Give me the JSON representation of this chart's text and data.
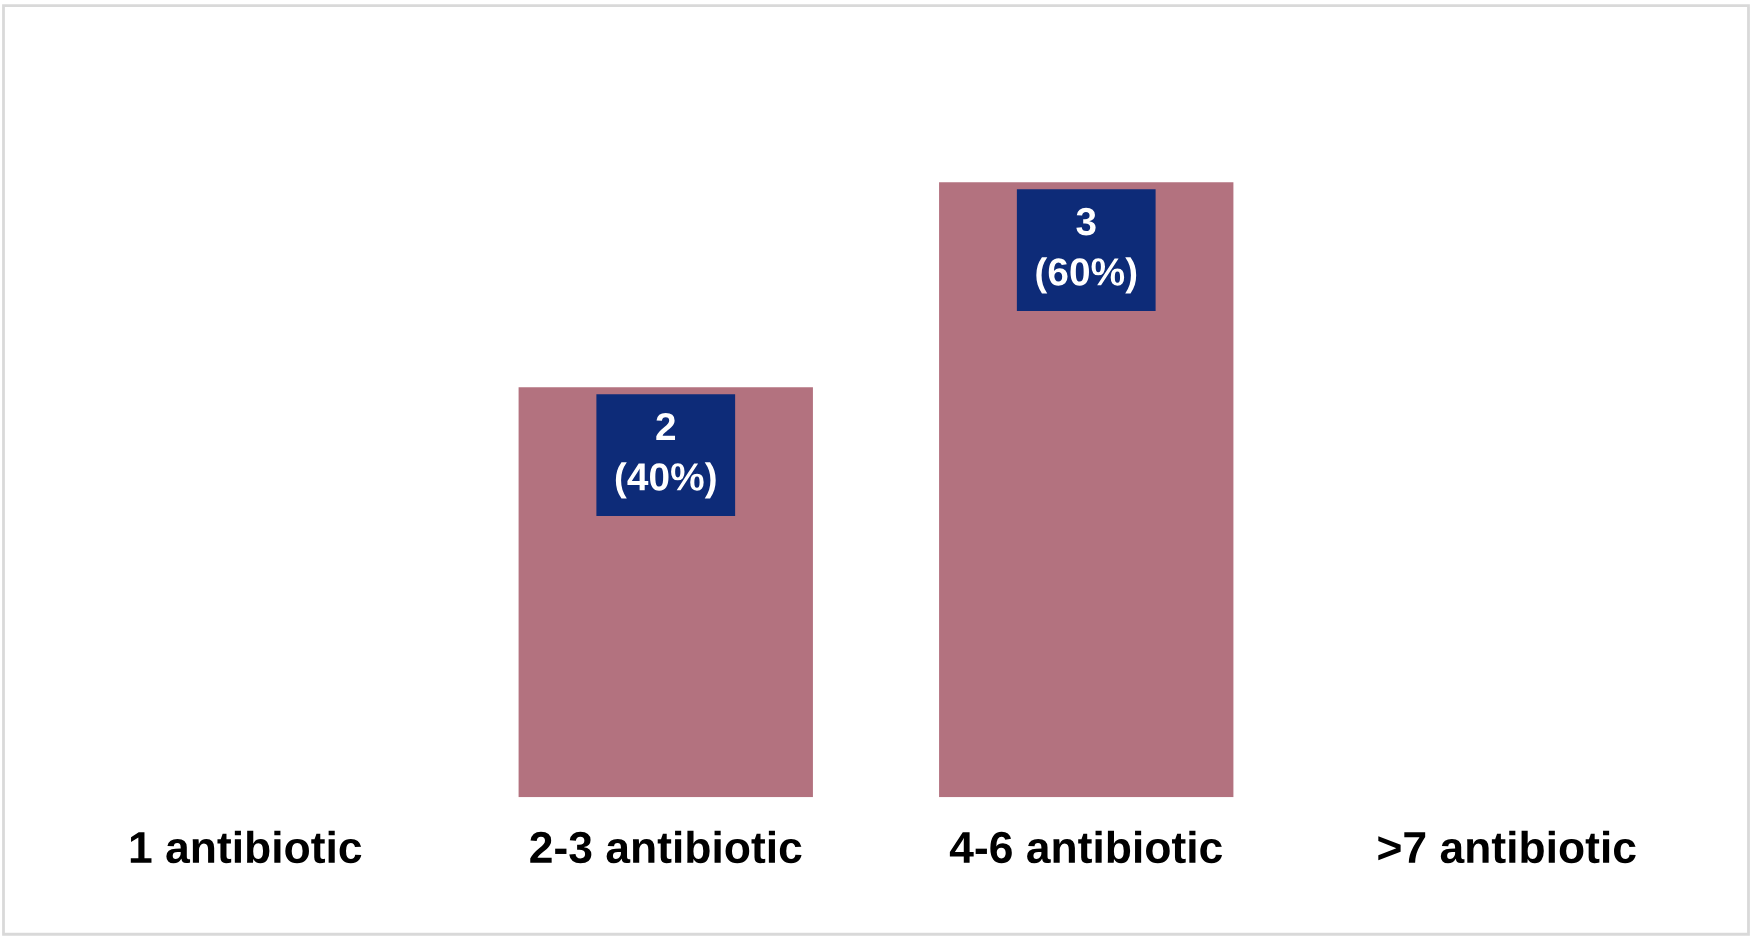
{
  "chart_data": {
    "type": "bar",
    "categories": [
      "1 antibiotic",
      "2-3 antibiotic",
      "4-6 antibiotic",
      ">7 antibiotic"
    ],
    "values": [
      0,
      2,
      3,
      0
    ],
    "value_labels": [
      null,
      "2\n(40%)",
      "3\n(60%)",
      null
    ],
    "color": "#b3727f",
    "grid": false,
    "legend": false
  }
}
